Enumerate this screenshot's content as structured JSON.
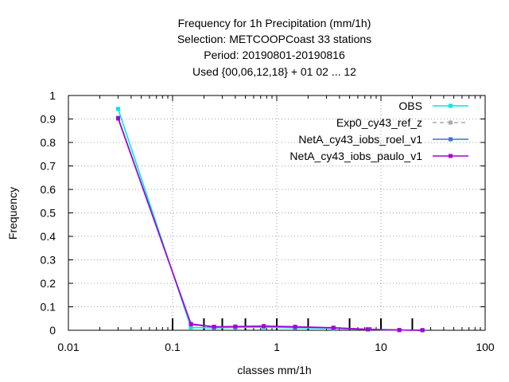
{
  "chart_data": {
    "type": "line",
    "title_lines": [
      "Frequency  for 1h Precipitation (mm/1h)",
      "Selection: METCOOPCoast     33 stations",
      "Period: 20190801-20190816",
      "Used {00,06,12,18} + 01 02 ... 12"
    ],
    "xlabel": "classes mm/1h",
    "ylabel": "Frequency",
    "x_scale": "log",
    "xlim": [
      0.01,
      100
    ],
    "ylim": [
      0,
      1
    ],
    "x_ticks": [
      0.01,
      0.1,
      1,
      10,
      100
    ],
    "x_tick_labels": [
      "0.01",
      "0.1",
      "1",
      "10",
      "100"
    ],
    "y_ticks": [
      0,
      0.1,
      0.2,
      0.3,
      0.4,
      0.5,
      0.6,
      0.7,
      0.8,
      0.9,
      1
    ],
    "y_tick_labels": [
      "0",
      "0.1",
      "0.2",
      "0.3",
      "0.4",
      "0.5",
      "0.6",
      "0.7",
      "0.8",
      "0.9",
      "1"
    ],
    "grid": true,
    "legend_position": "top-right",
    "class_boundaries": [
      0.1,
      0.2,
      0.3,
      0.5,
      1,
      2,
      5,
      10,
      20
    ],
    "x": [
      0.03,
      0.15,
      0.25,
      0.4,
      0.75,
      1.5,
      3.5,
      7.5,
      15,
      25
    ],
    "series": [
      {
        "name": "OBS",
        "color": "#00e5e5",
        "dashed": false,
        "values": [
          0.943,
          0.012,
          0.01,
          0.012,
          0.013,
          0.01,
          0.008,
          0.003,
          0.001,
          0.0003
        ]
      },
      {
        "name": "Exp0_cy43_ref_z",
        "color": "#a8a8a8",
        "dashed": true,
        "values": [
          0.905,
          0.024,
          0.013,
          0.015,
          0.016,
          0.013,
          0.01,
          0.004,
          0.001,
          0.0004
        ]
      },
      {
        "name": "NetA_cy43_iobs_roel_v1",
        "color": "#3f6fdc",
        "dashed": false,
        "values": [
          0.905,
          0.025,
          0.014,
          0.015,
          0.017,
          0.014,
          0.01,
          0.004,
          0.001,
          0.0004
        ]
      },
      {
        "name": "NetA_cy43_iobs_paulo_v1",
        "color": "#a600d9",
        "dashed": false,
        "values": [
          0.902,
          0.027,
          0.015,
          0.016,
          0.018,
          0.015,
          0.011,
          0.004,
          0.001,
          0.0005
        ]
      }
    ]
  }
}
